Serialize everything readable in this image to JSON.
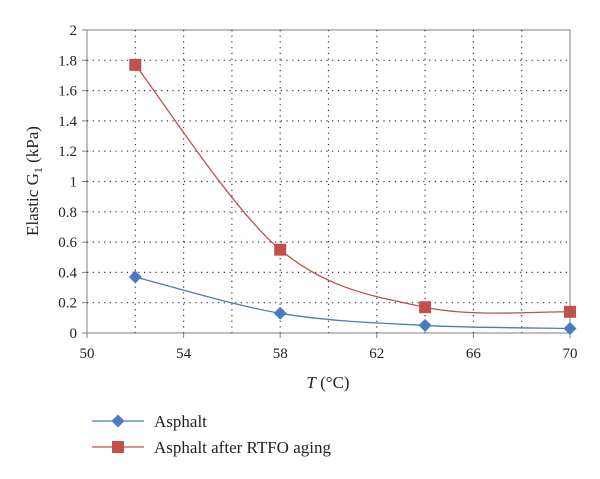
{
  "chart_data": {
    "type": "line",
    "xlabel": "T (°C)",
    "ylabel": "Elastic G1 (kPa)",
    "xlim": [
      50,
      70
    ],
    "ylim": [
      0,
      2
    ],
    "xticks": [
      50,
      54,
      58,
      62,
      66,
      70
    ],
    "xtick_labels": [
      "50",
      "54",
      "58",
      "62",
      "66",
      "70"
    ],
    "yticks": [
      0,
      0.2,
      0.4,
      0.6,
      0.8,
      1,
      1.2,
      1.4,
      1.6,
      1.8,
      2
    ],
    "ytick_labels": [
      "0",
      "0.2",
      "0.4",
      "0.6",
      "0.8",
      "1",
      "1.2",
      "1.4",
      "1.6",
      "1.8",
      "2"
    ],
    "grid": true,
    "legend_position": "bottom",
    "series": [
      {
        "name": "Asphalt",
        "color": "#4a7bbf",
        "marker": "diamond",
        "x": [
          52,
          58,
          64,
          70
        ],
        "y": [
          0.37,
          0.13,
          0.05,
          0.03
        ]
      },
      {
        "name": "Asphalt after RTFO aging",
        "color": "#c0504d",
        "marker": "square",
        "x": [
          52,
          58,
          64,
          70
        ],
        "y": [
          1.77,
          0.55,
          0.17,
          0.14
        ]
      }
    ]
  }
}
